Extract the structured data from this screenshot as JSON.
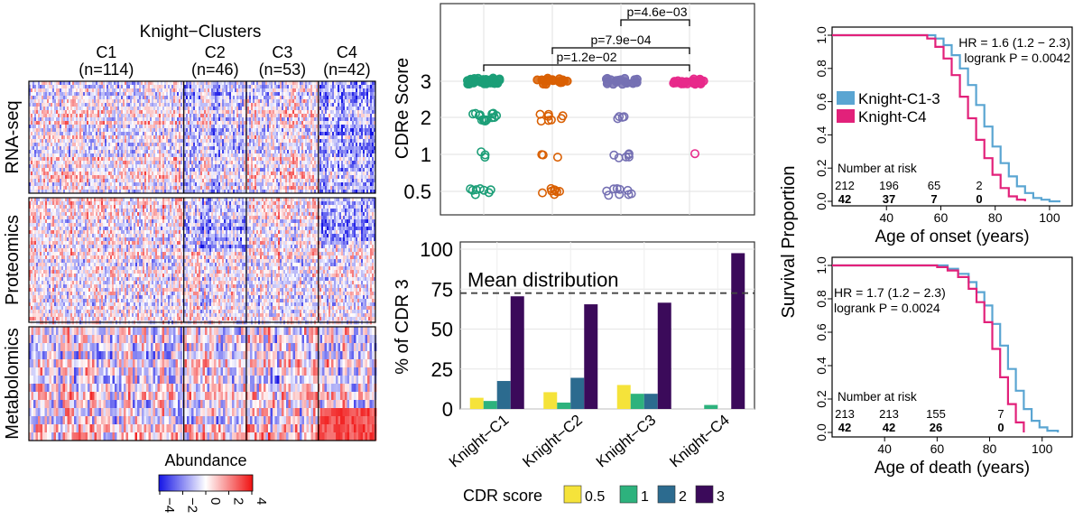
{
  "heatmap": {
    "title": "Knight−Clusters",
    "clusters": [
      {
        "label": "C1",
        "n": "(n=114)",
        "size": 114
      },
      {
        "label": "C2",
        "n": "(n=46)",
        "size": 46
      },
      {
        "label": "C3",
        "n": "(n=53)",
        "size": 53
      },
      {
        "label": "C4",
        "n": "(n=42)",
        "size": 42
      }
    ],
    "rows": [
      "RNA-seq",
      "Proteomics",
      "Metabolomics"
    ],
    "legend_title": "Abundance",
    "legend_ticks": [
      "−4",
      "−2",
      "0",
      "2",
      "4"
    ],
    "legend_colors": {
      "low": "#1414e6",
      "mid": "#ffffff",
      "high": "#f01010"
    }
  },
  "chart_data": [
    {
      "type": "scatter",
      "ylabel": "CDRe Score",
      "y_levels": [
        0.5,
        1,
        2,
        3
      ],
      "ytick_labels": [
        "0.5",
        "1",
        "2",
        "3"
      ],
      "groups": [
        "Knight−C1",
        "Knight−C2",
        "Knight−C3",
        "Knight−C4"
      ],
      "group_colors": [
        "#1b9e77",
        "#d95f02",
        "#7570b3",
        "#e7298a"
      ],
      "annotations": [
        {
          "from": "Knight−C1",
          "to": "Knight−C4",
          "label": "p=1.2e−02"
        },
        {
          "from": "Knight−C2",
          "to": "Knight−C4",
          "label": "p=7.9e−04"
        },
        {
          "from": "Knight−C3",
          "to": "Knight−C4",
          "label": "p=4.6e−03"
        }
      ]
    },
    {
      "type": "bar",
      "ylabel": "% of CDR 3",
      "categories": [
        "Knight−C1",
        "Knight−C2",
        "Knight−C3",
        "Knight−C4"
      ],
      "series": [
        {
          "name": "0.5",
          "color": "#f5e33a",
          "values": [
            7,
            10.5,
            15,
            0
          ]
        },
        {
          "name": "1",
          "color": "#2db27d",
          "values": [
            5,
            4,
            9.5,
            2.5
          ]
        },
        {
          "name": "2",
          "color": "#2c6b8f",
          "values": [
            17.5,
            19.5,
            9.5,
            0
          ]
        },
        {
          "name": "3",
          "color": "#3b0a5a",
          "values": [
            70.5,
            65.5,
            66.5,
            97.5
          ]
        }
      ],
      "ylim": [
        0,
        100
      ],
      "yticks": [
        0,
        25,
        50,
        75,
        100
      ],
      "mean_line": {
        "value": 72.5,
        "label": "Mean distribution"
      },
      "legend_title": "CDR score"
    },
    {
      "type": "line",
      "xlabel": "Age of onset (years)",
      "ylabel": "Survival Proportion",
      "xlim": [
        20,
        105
      ],
      "xticks": [
        40,
        60,
        80,
        100
      ],
      "ylim": [
        0,
        1
      ],
      "yticks": [
        "0.0",
        "0.2",
        "0.4",
        "0.6",
        "0.8",
        "1.0"
      ],
      "hr_text": "HR = 1.6 (1.2 − 2.3)",
      "logrank_text": "logrank P = 0.0042",
      "risk_title": "Number at risk",
      "series": [
        {
          "name": "Knight-C1-3",
          "color": "#5aa5d2",
          "x": [
            20,
            55,
            58,
            61,
            64,
            67,
            70,
            73,
            76,
            79,
            82,
            85,
            88,
            91,
            94,
            97,
            100,
            104
          ],
          "y": [
            1,
            1,
            0.98,
            0.94,
            0.88,
            0.8,
            0.7,
            0.58,
            0.45,
            0.33,
            0.23,
            0.15,
            0.09,
            0.05,
            0.02,
            0.01,
            0,
            0
          ],
          "risk": [
            "212",
            "196",
            "65",
            "2"
          ]
        },
        {
          "name": "Knight-C4",
          "color": "#e2217a",
          "x": [
            20,
            55,
            58,
            61,
            64,
            67,
            70,
            73,
            76,
            79,
            82,
            85,
            88,
            91
          ],
          "y": [
            1,
            0.98,
            0.93,
            0.86,
            0.76,
            0.63,
            0.5,
            0.37,
            0.26,
            0.16,
            0.08,
            0.03,
            0.01,
            0
          ],
          "risk": [
            "42",
            "37",
            "7",
            "0"
          ]
        }
      ]
    },
    {
      "type": "line",
      "xlabel": "Age of death (years)",
      "ylabel": "Survival Proportion",
      "xlim": [
        20,
        108
      ],
      "xticks": [
        40,
        60,
        80,
        100
      ],
      "ylim": [
        0,
        1
      ],
      "yticks": [
        "0.0",
        "0.2",
        "0.4",
        "0.6",
        "0.8",
        "1.0"
      ],
      "hr_text": "HR = 1.7 (1.2 − 2.3)",
      "logrank_text": "logrank P = 0.0024",
      "risk_title": "Number at risk",
      "series": [
        {
          "name": "Knight-C1-3",
          "color": "#5aa5d2",
          "x": [
            20,
            60,
            64,
            68,
            72,
            75,
            78,
            81,
            84,
            87,
            90,
            93,
            96,
            99,
            102,
            106
          ],
          "y": [
            1,
            1,
            0.98,
            0.95,
            0.9,
            0.84,
            0.76,
            0.65,
            0.52,
            0.38,
            0.25,
            0.14,
            0.07,
            0.03,
            0.01,
            0
          ],
          "risk": [
            "213",
            "213",
            "155",
            "7"
          ]
        },
        {
          "name": "Knight-C4",
          "color": "#e2217a",
          "x": [
            20,
            60,
            64,
            68,
            72,
            75,
            78,
            81,
            84,
            87,
            90,
            93
          ],
          "y": [
            1,
            0.99,
            0.97,
            0.93,
            0.86,
            0.78,
            0.66,
            0.5,
            0.33,
            0.17,
            0.06,
            0
          ],
          "risk": [
            "42",
            "42",
            "26",
            "0"
          ]
        }
      ]
    }
  ]
}
